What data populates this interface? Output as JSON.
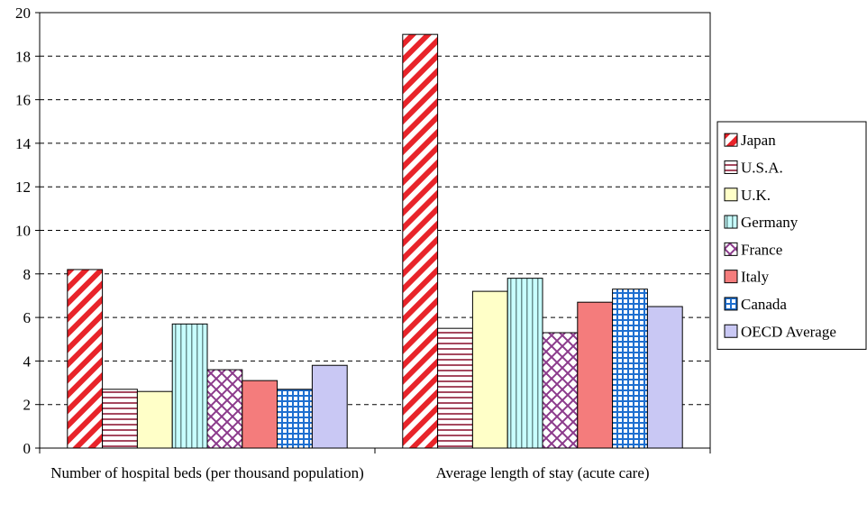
{
  "chart_data": {
    "type": "bar",
    "categories": [
      "Number of hospital beds (per thousand population)",
      "Average length of stay (acute care)"
    ],
    "series": [
      {
        "name": "Japan",
        "values": [
          8.2,
          19.0
        ],
        "color": "#e8242a",
        "pattern": "diagonal-stripes"
      },
      {
        "name": "U.S.A.",
        "values": [
          2.7,
          5.5
        ],
        "color": "#a5485e",
        "pattern": "horizontal-lines"
      },
      {
        "name": "U.K.",
        "values": [
          2.6,
          7.2
        ],
        "color": "#ffffc8",
        "pattern": "solid"
      },
      {
        "name": "Germany",
        "values": [
          5.7,
          7.8
        ],
        "color": "#c8ffff",
        "pattern": "vertical-lines"
      },
      {
        "name": "France",
        "values": [
          3.6,
          5.3
        ],
        "color": "#8b3a8b",
        "pattern": "cross-hatch"
      },
      {
        "name": "Italy",
        "values": [
          3.1,
          6.7
        ],
        "color": "#f47c7c",
        "pattern": "solid"
      },
      {
        "name": "Canada",
        "values": [
          2.7,
          7.3
        ],
        "color": "#1e6fd0",
        "pattern": "grid"
      },
      {
        "name": "OECD Average",
        "values": [
          3.8,
          6.5
        ],
        "color": "#c9c8f4",
        "pattern": "solid"
      }
    ],
    "ylim": [
      0,
      20
    ],
    "yticks": [
      "0",
      "2",
      "4",
      "6",
      "8",
      "10",
      "12",
      "14",
      "16",
      "18",
      "20"
    ],
    "grid": true,
    "legend_position": "right"
  }
}
